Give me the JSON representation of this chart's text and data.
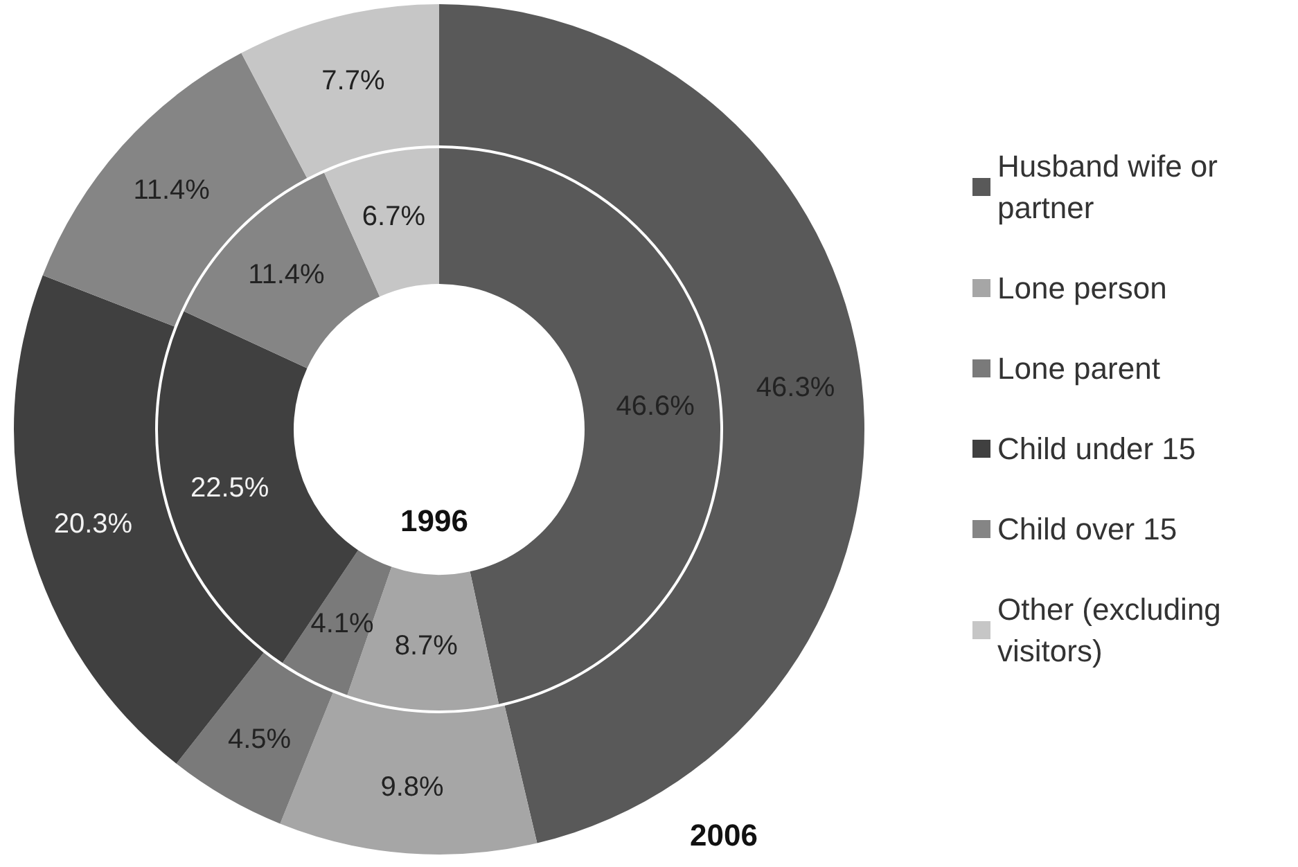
{
  "chart_data": {
    "type": "donut",
    "categories": [
      "Husband wife or partner",
      "Lone person",
      "Lone parent",
      "Child under 15",
      "Child over 15",
      "Other (excluding visitors)"
    ],
    "colors": [
      "#595959",
      "#a6a6a6",
      "#7a7a7a",
      "#404040",
      "#858585",
      "#c6c6c6"
    ],
    "series": [
      {
        "name": "1996",
        "values": [
          46.6,
          8.7,
          4.1,
          22.5,
          11.4,
          6.7
        ],
        "value_labels": [
          "46.6%",
          "8.7%",
          "4.1%",
          "22.5%",
          "11.4%",
          "6.7%"
        ]
      },
      {
        "name": "2006",
        "values": [
          46.3,
          9.8,
          4.5,
          20.3,
          11.4,
          7.7
        ],
        "value_labels": [
          "46.3%",
          "9.8%",
          "4.5%",
          "20.3%",
          "11.4%",
          "7.7%"
        ]
      }
    ],
    "legend": "right"
  }
}
